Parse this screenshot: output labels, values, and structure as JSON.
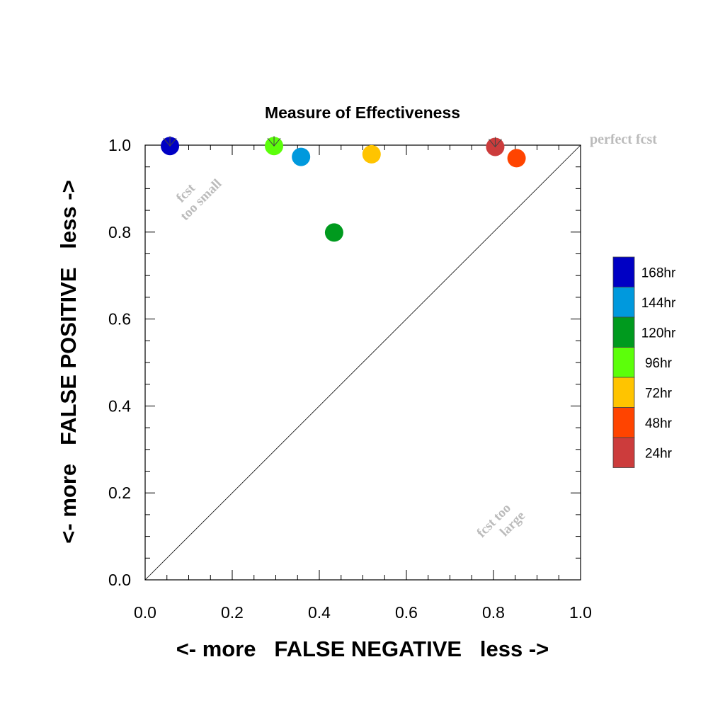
{
  "chart_data": {
    "type": "scatter",
    "title": "Measure of Effectiveness",
    "xlabel": "<- more   FALSE NEGATIVE   less ->",
    "ylabel": "<- more   FALSE POSITIVE   less ->",
    "xlim": [
      0.0,
      1.0
    ],
    "ylim": [
      0.0,
      1.0
    ],
    "x_ticks": [
      "0.0",
      "0.2",
      "0.4",
      "0.6",
      "0.8",
      "1.0"
    ],
    "y_ticks": [
      "0.0",
      "0.2",
      "0.4",
      "0.6",
      "0.8",
      "1.0"
    ],
    "diagonal_line": true,
    "annotations": {
      "perfect": "perfect fcst",
      "too_small_line1": "fcst",
      "too_small_line2": "too small",
      "too_large_line1": "fcst too",
      "too_large_line2": "large"
    },
    "points": [
      {
        "label": "168hr",
        "x": 0.057,
        "y": 0.998,
        "color": "#0000c4",
        "arrow": true
      },
      {
        "label": "144hr",
        "x": 0.358,
        "y": 0.973,
        "color": "#0099dd",
        "arrow": false
      },
      {
        "label": "120hr",
        "x": 0.434,
        "y": 0.799,
        "color": "#009a1e",
        "arrow": false
      },
      {
        "label": "96hr",
        "x": 0.296,
        "y": 0.998,
        "color": "#5cff0a",
        "arrow": true
      },
      {
        "label": "72hr",
        "x": 0.52,
        "y": 0.979,
        "color": "#ffc400",
        "arrow": false
      },
      {
        "label": "48hr",
        "x": 0.853,
        "y": 0.97,
        "color": "#ff4400",
        "arrow": false
      },
      {
        "label": "24hr",
        "x": 0.804,
        "y": 0.996,
        "color": "#cc3c3c",
        "arrow": true
      }
    ],
    "legend": {
      "position": "right",
      "entries": [
        {
          "label": "168hr",
          "color": "#0000c4"
        },
        {
          "label": "144hr",
          "color": "#0099dd"
        },
        {
          "label": "120hr",
          "color": "#009a1e"
        },
        {
          "label": "96hr",
          "color": "#5cff0a"
        },
        {
          "label": "72hr",
          "color": "#ffc400"
        },
        {
          "label": "48hr",
          "color": "#ff4400"
        },
        {
          "label": "24hr",
          "color": "#cc3c3c"
        }
      ]
    }
  }
}
